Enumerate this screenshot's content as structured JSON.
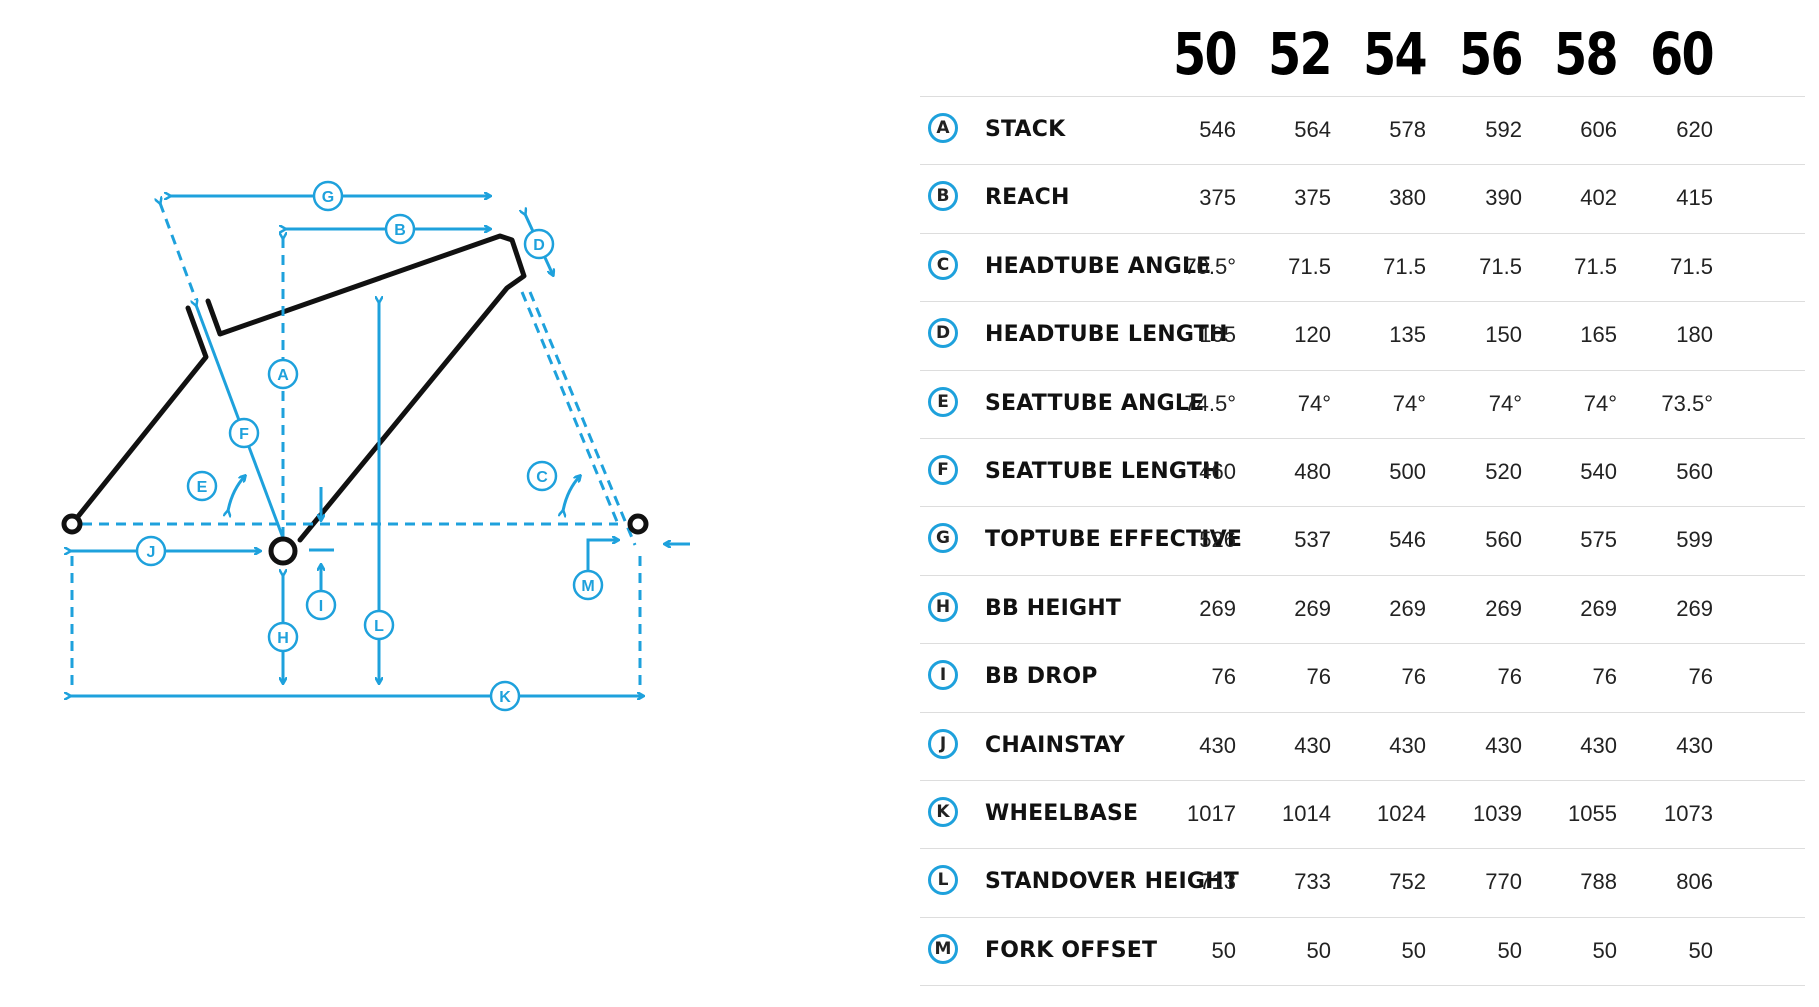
{
  "accent_color": "#1ea1dc",
  "frame_color": "#111111",
  "sizes": [
    "50",
    "52",
    "54",
    "56",
    "58",
    "60"
  ],
  "diagram": {
    "labels": [
      "A",
      "B",
      "C",
      "D",
      "E",
      "F",
      "G",
      "H",
      "I",
      "J",
      "K",
      "L",
      "M"
    ]
  },
  "rows": [
    {
      "key": "A",
      "label": "STACK",
      "values": [
        "546",
        "564",
        "578",
        "592",
        "606",
        "620"
      ]
    },
    {
      "key": "B",
      "label": "REACH",
      "values": [
        "375",
        "375",
        "380",
        "390",
        "402",
        "415"
      ]
    },
    {
      "key": "C",
      "label": "HEADTUBE ANGLE",
      "values": [
        "70.5°",
        "71.5",
        "71.5",
        "71.5",
        "71.5",
        "71.5"
      ]
    },
    {
      "key": "D",
      "label": "HEADTUBE LENGTH",
      "values": [
        "105",
        "120",
        "135",
        "150",
        "165",
        "180"
      ]
    },
    {
      "key": "E",
      "label": "SEATTUBE ANGLE",
      "values": [
        "74.5°",
        "74°",
        "74°",
        "74°",
        "74°",
        "73.5°"
      ]
    },
    {
      "key": "F",
      "label": "SEATTUBE LENGTH",
      "values": [
        "460",
        "480",
        "500",
        "520",
        "540",
        "560"
      ]
    },
    {
      "key": "G",
      "label": "TOPTUBE EFFECTIVE",
      "values": [
        "526",
        "537",
        "546",
        "560",
        "575",
        "599"
      ]
    },
    {
      "key": "H",
      "label": "BB HEIGHT",
      "values": [
        "269",
        "269",
        "269",
        "269",
        "269",
        "269"
      ]
    },
    {
      "key": "I",
      "label": "BB DROP",
      "values": [
        "76",
        "76",
        "76",
        "76",
        "76",
        "76"
      ]
    },
    {
      "key": "J",
      "label": "CHAINSTAY",
      "values": [
        "430",
        "430",
        "430",
        "430",
        "430",
        "430"
      ]
    },
    {
      "key": "K",
      "label": "WHEELBASE",
      "values": [
        "1017",
        "1014",
        "1024",
        "1039",
        "1055",
        "1073"
      ]
    },
    {
      "key": "L",
      "label": "STANDOVER HEIGHT",
      "values": [
        "713",
        "733",
        "752",
        "770",
        "788",
        "806"
      ]
    },
    {
      "key": "M",
      "label": "FORK OFFSET",
      "values": [
        "50",
        "50",
        "50",
        "50",
        "50",
        "50"
      ]
    }
  ]
}
